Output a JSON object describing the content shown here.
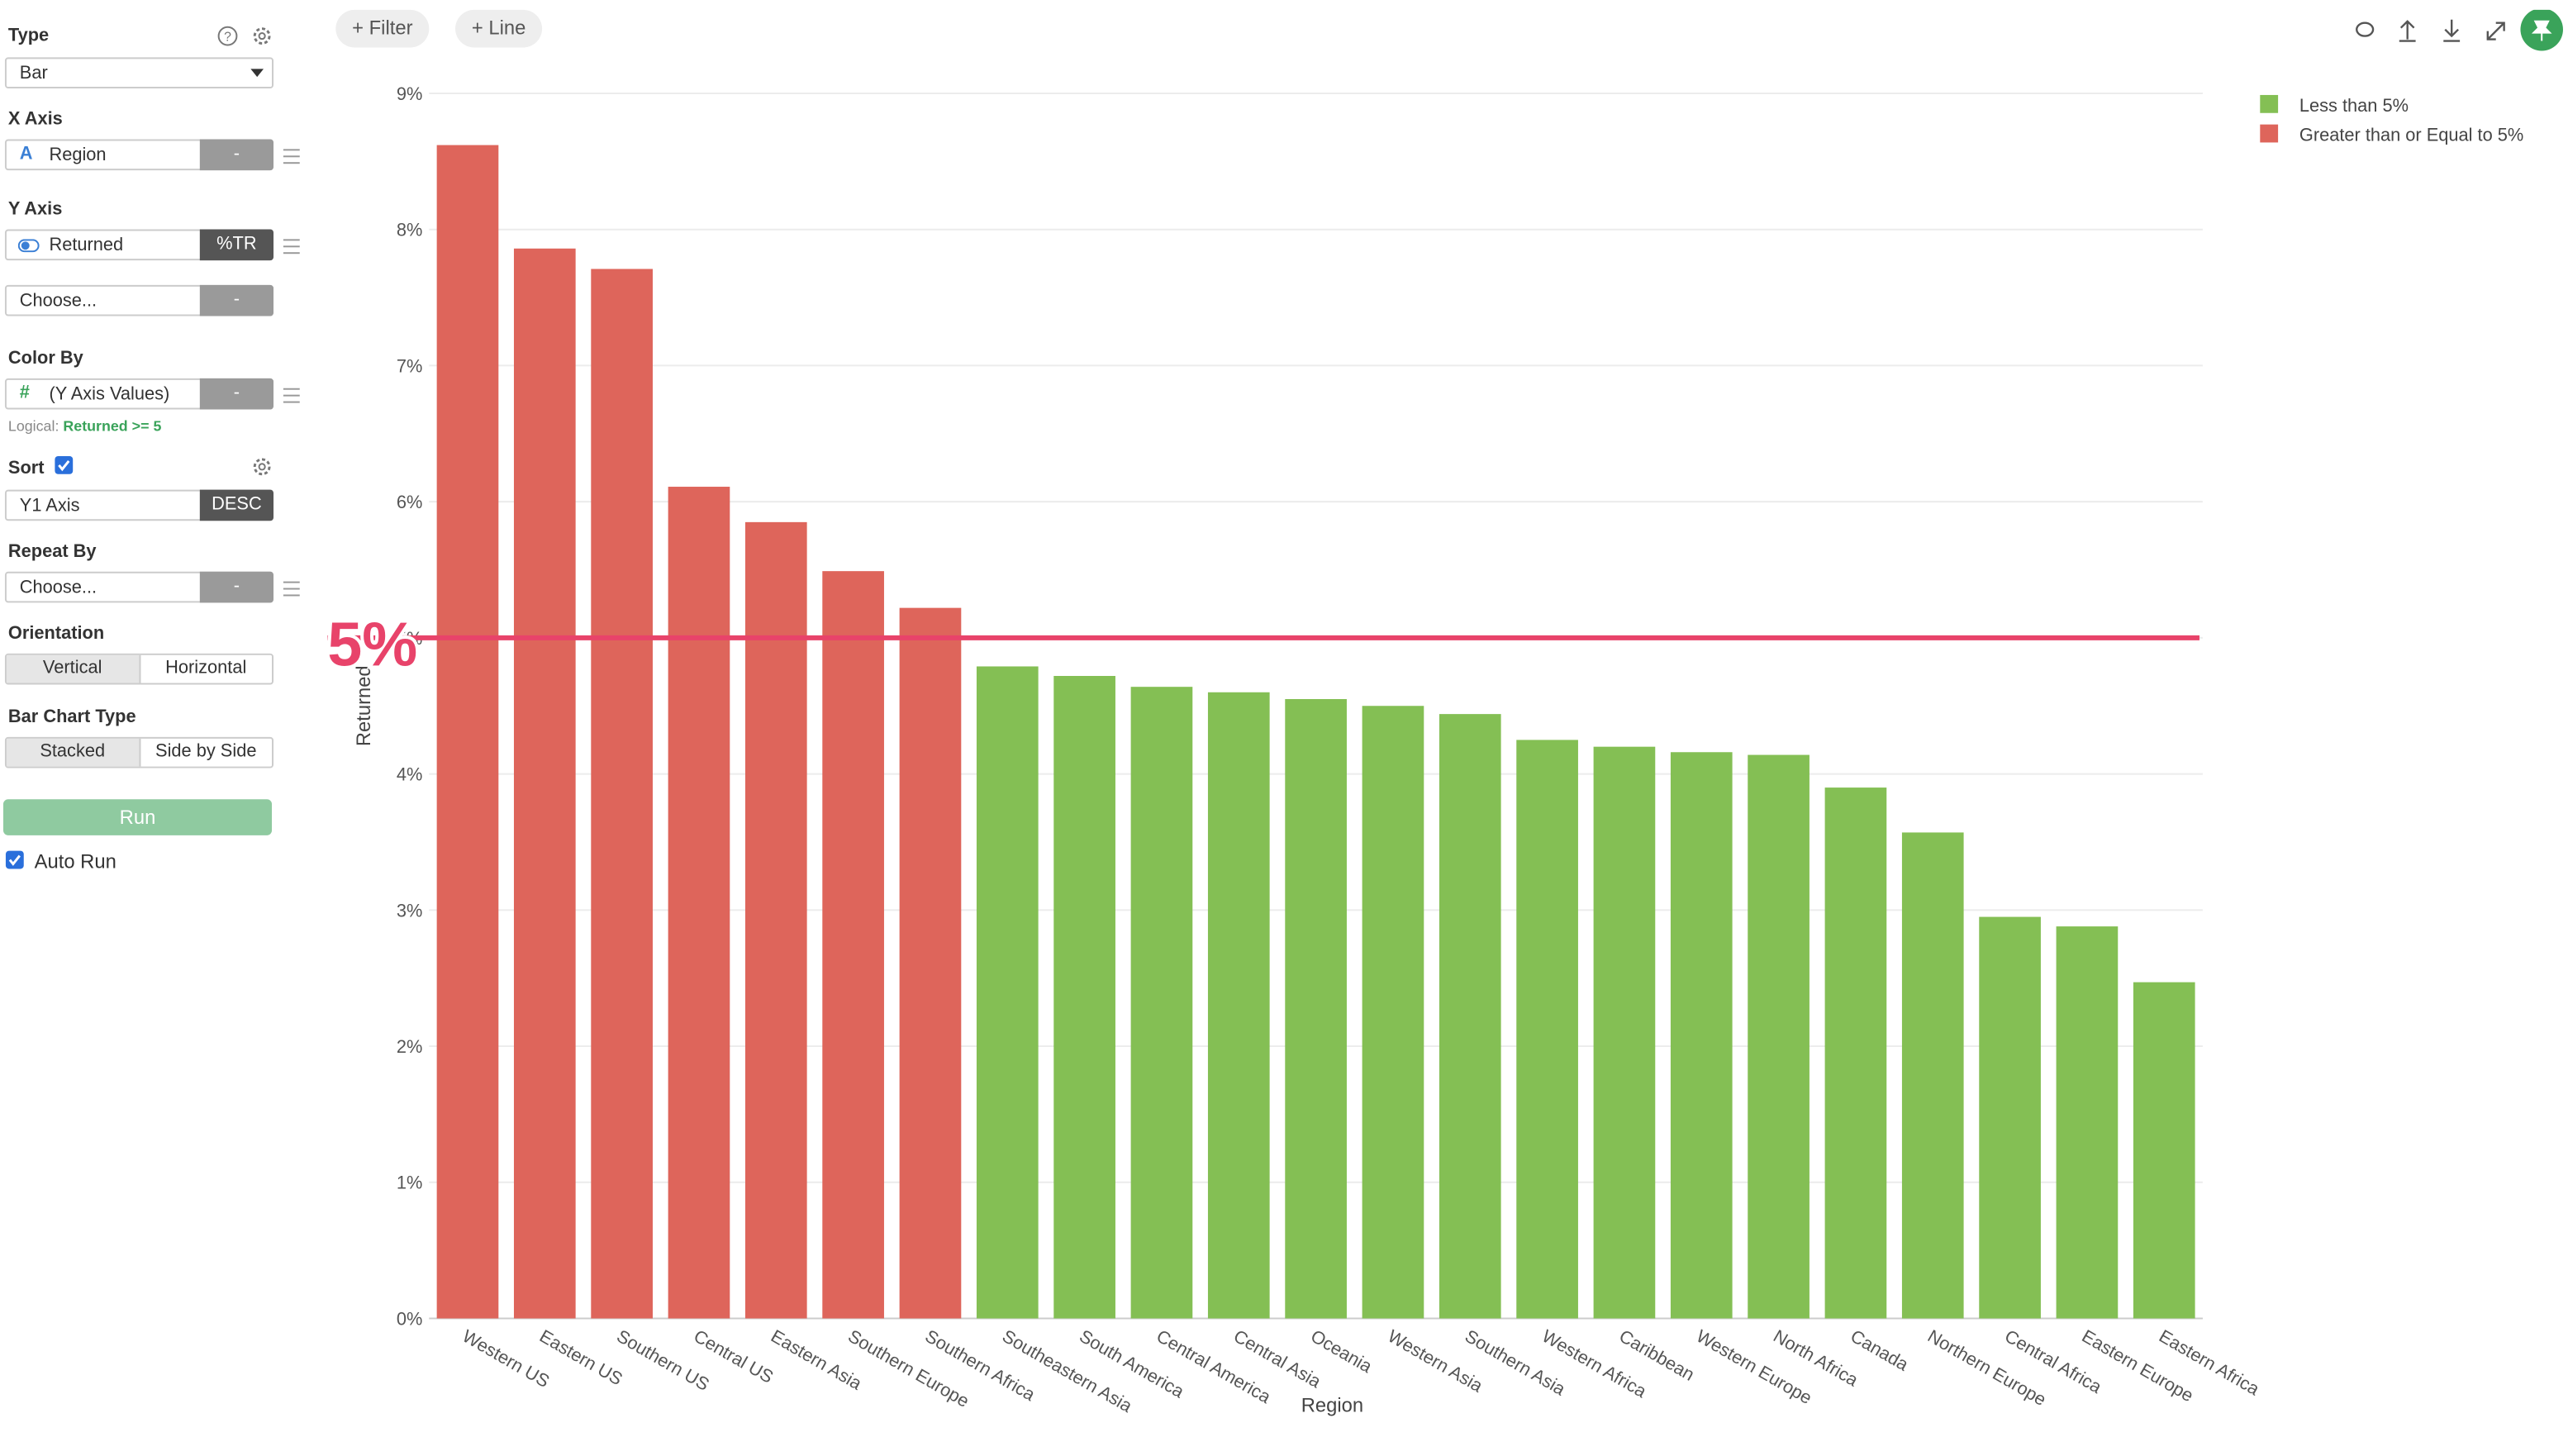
{
  "sidebar": {
    "type_label": "Type",
    "type_value": "Bar",
    "x_axis_label": "X Axis",
    "x_axis_icon": "A",
    "x_axis_field": "Region",
    "x_axis_agg": "-",
    "y_axis_label": "Y Axis",
    "y_axis_field": "Returned",
    "y_axis_agg": "%TR",
    "y_axis_field2": "Choose...",
    "y_axis_agg2": "-",
    "color_by_label": "Color By",
    "color_by_icon": "#",
    "color_by_field": "(Y Axis Values)",
    "color_by_agg": "-",
    "logical_prefix": "Logical:",
    "logical_expr": "Returned >= 5",
    "sort_label": "Sort",
    "sort_field": "Y1 Axis",
    "sort_order": "DESC",
    "repeat_by_label": "Repeat By",
    "repeat_by_field": "Choose...",
    "repeat_by_agg": "-",
    "orientation_label": "Orientation",
    "orientation_options": [
      "Vertical",
      "Horizontal"
    ],
    "bar_type_label": "Bar Chart Type",
    "bar_type_options": [
      "Stacked",
      "Side by Side"
    ],
    "run_button": "Run",
    "auto_run": "Auto Run"
  },
  "toolbar": {
    "filter": "Filter",
    "line": "Line"
  },
  "chart_data": {
    "type": "bar",
    "x_label": "Region",
    "y_label": "Returned",
    "categories": [
      "Western US",
      "Eastern US",
      "Southern US",
      "Central US",
      "Eastern Asia",
      "Southern Europe",
      "Southern Africa",
      "Southeastern Asia",
      "South America",
      "Central America",
      "Central Asia",
      "Oceania",
      "Western Asia",
      "Southern Asia",
      "Western Africa",
      "Caribbean",
      "Western Europe",
      "North Africa",
      "Canada",
      "Northern Europe",
      "Central Africa",
      "Eastern Europe",
      "Eastern Africa"
    ],
    "series": [
      {
        "name": "Less than 5%",
        "color": "#84bf54",
        "values": [
          null,
          null,
          null,
          null,
          null,
          null,
          null,
          4.79,
          4.72,
          4.64,
          4.6,
          4.55,
          4.5,
          4.44,
          4.25,
          4.2,
          4.16,
          4.14,
          3.9,
          3.57,
          2.95,
          2.88,
          2.47
        ]
      },
      {
        "name": "Greater than or Equal to 5%",
        "color": "#de655b",
        "values": [
          8.62,
          7.86,
          7.71,
          6.11,
          5.85,
          5.49,
          5.22,
          null,
          null,
          null,
          null,
          null,
          null,
          null,
          null,
          null,
          null,
          null,
          null,
          null,
          null,
          null,
          null
        ]
      }
    ],
    "ylim": [
      0,
      9
    ],
    "yticks": [
      {
        "value": 0,
        "label": "0%"
      },
      {
        "value": 1,
        "label": "1%"
      },
      {
        "value": 2,
        "label": "2%"
      },
      {
        "value": 3,
        "label": "3%"
      },
      {
        "value": 4,
        "label": "4%"
      },
      {
        "value": 5,
        "label": "5%"
      },
      {
        "value": 6,
        "label": "6%"
      },
      {
        "value": 7,
        "label": "7%"
      },
      {
        "value": 8,
        "label": "8%"
      },
      {
        "value": 9,
        "label": "9%"
      }
    ],
    "grid": true,
    "reference_line": {
      "value": 5,
      "label": "5%",
      "color": "#e8436a"
    },
    "legend_position": "top-right"
  }
}
